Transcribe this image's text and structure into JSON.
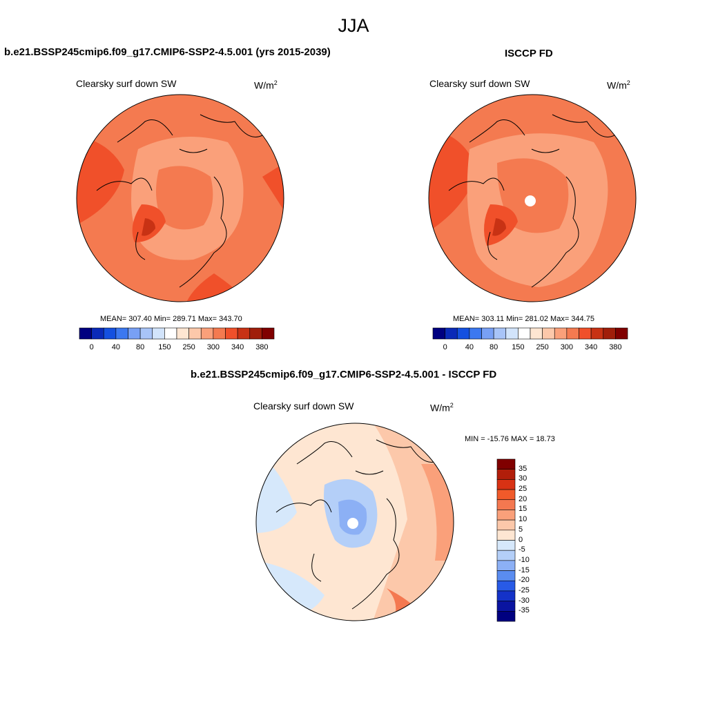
{
  "figure": {
    "title": "JJA",
    "colorbar_units_base": "W/m",
    "colorbar_units_exp": "2"
  },
  "chart_data": [
    {
      "type": "heatmap",
      "projection": "north-polar-stereographic",
      "title": "b.e21.BSSP245cmip6.f09_g17.CMIP6-SSP2-4.5.001 (yrs 2015-2039)",
      "variable": "Clearsky surf down SW",
      "stats_text": "MEAN= 307.40  Min= 289.71  Max= 343.70",
      "mean": 307.4,
      "min": 289.71,
      "max": 343.7,
      "colorbar_levels": [
        0,
        20,
        40,
        60,
        80,
        100,
        150,
        200,
        250,
        280,
        300,
        320,
        340,
        360,
        380
      ],
      "colorbar_tick_labels": [
        "0",
        "40",
        "80",
        "150",
        "250",
        "300",
        "340",
        "380"
      ],
      "colorbar_colors": [
        "#000080",
        "#0a2ab8",
        "#1450e0",
        "#3c78f0",
        "#78a0f5",
        "#a8c4f8",
        "#d2e4fb",
        "#ffffff",
        "#fee6d2",
        "#fcc8aa",
        "#faa07a",
        "#f47a50",
        "#f0502a",
        "#c83214",
        "#a01e0a",
        "#800000"
      ],
      "legend_position": "bottom"
    },
    {
      "type": "heatmap",
      "projection": "north-polar-stereographic",
      "title": "ISCCP FD",
      "variable": "Clearsky surf down SW",
      "stats_text": "MEAN= 303.11  Min= 281.02  Max= 344.75",
      "mean": 303.11,
      "min": 281.02,
      "max": 344.75,
      "colorbar_levels": [
        0,
        20,
        40,
        60,
        80,
        100,
        150,
        200,
        250,
        280,
        300,
        320,
        340,
        360,
        380
      ],
      "colorbar_tick_labels": [
        "0",
        "40",
        "80",
        "150",
        "250",
        "300",
        "340",
        "380"
      ],
      "colorbar_colors": [
        "#000080",
        "#0a2ab8",
        "#1450e0",
        "#3c78f0",
        "#78a0f5",
        "#a8c4f8",
        "#d2e4fb",
        "#ffffff",
        "#fee6d2",
        "#fcc8aa",
        "#faa07a",
        "#f47a50",
        "#f0502a",
        "#c83214",
        "#a01e0a",
        "#800000"
      ],
      "legend_position": "bottom"
    },
    {
      "type": "heatmap",
      "projection": "north-polar-stereographic",
      "title": "b.e21.BSSP245cmip6.f09_g17.CMIP6-SSP2-4.5.001 - ISCCP FD",
      "variable": "Clearsky surf down SW",
      "stats_text": "MIN = -15.76 MAX =  18.73",
      "min": -15.76,
      "max": 18.73,
      "colorbar_levels": [
        -35,
        -30,
        -25,
        -20,
        -15,
        -10,
        -5,
        0,
        5,
        10,
        15,
        20,
        25,
        30,
        35
      ],
      "colorbar_tick_labels": [
        "35",
        "30",
        "25",
        "20",
        "15",
        "10",
        "5",
        "0",
        "-5",
        "-10",
        "-15",
        "-20",
        "-25",
        "-30",
        "-35"
      ],
      "colorbar_colors": [
        "#800000",
        "#b21e0a",
        "#d83214",
        "#f05a2a",
        "#f47850",
        "#faa07a",
        "#fcc8aa",
        "#fee6d2",
        "#d6e8fb",
        "#b4cff8",
        "#8cb0f5",
        "#5a8cf0",
        "#285ae6",
        "#1432c8",
        "#0a14a0",
        "#000080"
      ],
      "legend_position": "right"
    }
  ]
}
